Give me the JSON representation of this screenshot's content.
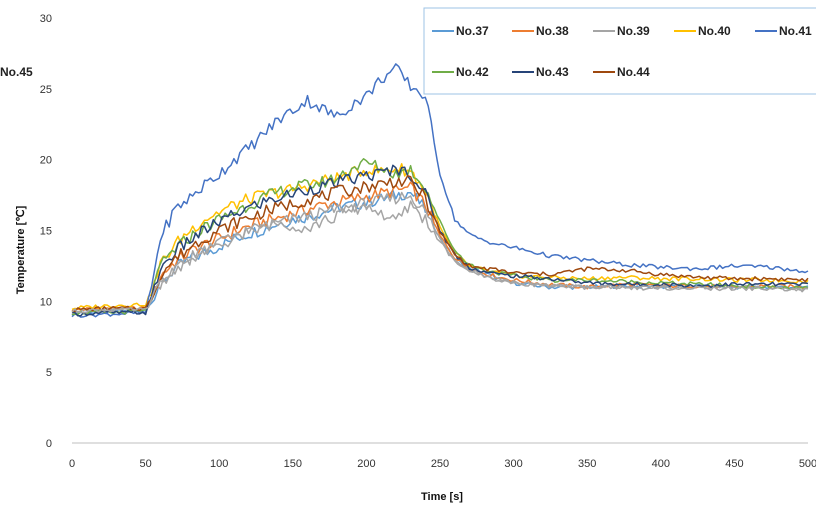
{
  "chart_data": {
    "type": "line",
    "title": "",
    "xlabel": "Time [s]",
    "ylabel": "Temperature [℃]",
    "xlim": [
      0,
      500
    ],
    "ylim": [
      0,
      30
    ],
    "x_ticks": [
      "0",
      "50",
      "100",
      "150",
      "200",
      "250",
      "300",
      "350",
      "400",
      "450",
      "500"
    ],
    "y_ticks": [
      "0",
      "5",
      "10",
      "15",
      "20",
      "25",
      "30"
    ],
    "grid": false,
    "legend_position": "top-right",
    "x": [
      0,
      25,
      50,
      55,
      60,
      70,
      80,
      90,
      100,
      110,
      120,
      130,
      140,
      150,
      160,
      170,
      180,
      190,
      200,
      210,
      220,
      230,
      240,
      250,
      260,
      270,
      280,
      290,
      300,
      325,
      350,
      375,
      400,
      425,
      450,
      475,
      500
    ],
    "series": [
      {
        "name": "No.37",
        "color": "#5b9bd5",
        "values": [
          9.2,
          9.3,
          9.3,
          10.2,
          11.2,
          12.3,
          13.0,
          13.4,
          13.9,
          14.4,
          14.8,
          15.1,
          15.5,
          15.8,
          16.0,
          16.3,
          16.6,
          16.8,
          17.0,
          17.2,
          17.5,
          17.7,
          16.5,
          14.5,
          13.0,
          12.3,
          12.0,
          11.6,
          11.3,
          11.0,
          11.0,
          11.1,
          11.0,
          11.1,
          11.0,
          11.0,
          11.0
        ]
      },
      {
        "name": "No.38",
        "color": "#ed7d31",
        "values": [
          9.4,
          9.5,
          9.5,
          10.4,
          11.8,
          12.8,
          13.5,
          14.0,
          14.4,
          14.9,
          15.3,
          15.6,
          15.9,
          16.2,
          16.5,
          16.8,
          17.0,
          17.2,
          17.4,
          17.6,
          17.8,
          18.0,
          16.8,
          14.6,
          13.1,
          12.3,
          12.0,
          11.7,
          11.5,
          11.2,
          11.0,
          11.2,
          11.1,
          11.1,
          11.0,
          11.1,
          11.0
        ]
      },
      {
        "name": "No.39",
        "color": "#a5a5a5",
        "values": [
          9.3,
          9.4,
          9.4,
          10.3,
          11.3,
          12.3,
          13.0,
          13.5,
          13.9,
          14.4,
          14.8,
          15.2,
          15.5,
          15.8,
          16.0,
          16.2,
          16.5,
          16.7,
          16.9,
          17.1,
          17.3,
          17.5,
          16.3,
          14.4,
          12.9,
          12.2,
          11.8,
          11.6,
          11.3,
          11.1,
          11.0,
          11.0,
          10.9,
          11.0,
          11.0,
          10.9,
          10.9
        ]
      },
      {
        "name": "No.40",
        "color": "#ffc000",
        "values": [
          9.5,
          9.7,
          9.8,
          10.8,
          12.6,
          14.0,
          15.0,
          15.8,
          16.3,
          16.8,
          17.2,
          17.5,
          17.7,
          17.9,
          18.2,
          18.5,
          18.7,
          19.0,
          19.3,
          19.2,
          19.4,
          19.2,
          17.8,
          15.2,
          13.4,
          12.5,
          12.2,
          12.0,
          11.8,
          11.7,
          11.6,
          11.7,
          11.6,
          11.6,
          11.5,
          11.5,
          11.4
        ]
      },
      {
        "name": "No.41",
        "color": "#4472c4",
        "values": [
          9.0,
          9.1,
          9.2,
          11.5,
          14.5,
          16.5,
          17.3,
          18.2,
          19.0,
          20.0,
          20.8,
          21.8,
          22.8,
          23.5,
          24.2,
          23.6,
          23.0,
          23.9,
          24.5,
          25.7,
          26.4,
          25.2,
          24.5,
          19.0,
          15.8,
          14.7,
          14.3,
          14.0,
          13.8,
          13.2,
          12.9,
          12.6,
          12.4,
          12.3,
          12.5,
          12.4,
          12.1
        ]
      },
      {
        "name": "No.42",
        "color": "#70ad47",
        "values": [
          9.2,
          9.2,
          9.3,
          10.5,
          12.5,
          13.7,
          14.5,
          15.2,
          15.8,
          16.3,
          16.8,
          17.3,
          17.7,
          18.0,
          18.2,
          18.4,
          18.7,
          19.4,
          19.8,
          19.4,
          19.0,
          19.3,
          18.1,
          15.6,
          13.6,
          12.6,
          12.2,
          12.0,
          11.8,
          11.5,
          11.5,
          11.4,
          11.3,
          11.2,
          11.1,
          11.0,
          10.9
        ]
      },
      {
        "name": "No.43",
        "color": "#264478",
        "values": [
          9.1,
          9.2,
          9.2,
          10.5,
          12.3,
          13.5,
          14.3,
          15.0,
          15.6,
          16.1,
          16.6,
          17.0,
          17.3,
          17.6,
          17.9,
          18.1,
          18.4,
          18.6,
          18.9,
          19.0,
          19.4,
          19.0,
          17.6,
          15.0,
          13.3,
          12.4,
          12.1,
          11.9,
          11.8,
          11.6,
          11.3,
          11.2,
          11.2,
          11.1,
          11.2,
          11.2,
          11.2
        ]
      },
      {
        "name": "No.44",
        "color": "#9e480e",
        "values": [
          9.4,
          9.5,
          9.5,
          10.4,
          11.9,
          13.0,
          13.8,
          14.5,
          15.0,
          15.5,
          15.9,
          16.3,
          16.6,
          16.9,
          17.2,
          17.4,
          17.7,
          17.9,
          18.1,
          18.3,
          18.5,
          18.4,
          17.3,
          14.9,
          13.3,
          12.5,
          12.3,
          12.2,
          12.0,
          11.9,
          12.3,
          12.2,
          11.9,
          11.7,
          11.6,
          11.6,
          11.5
        ]
      },
      {
        "name": "No.45",
        "color": "#a5a5a5",
        "values": [
          9.3,
          9.4,
          9.4,
          10.2,
          11.3,
          12.3,
          13.0,
          13.6,
          14.1,
          14.6,
          15.0,
          15.3,
          15.5,
          15.4,
          15.2,
          15.6,
          16.0,
          16.4,
          16.8,
          16.2,
          15.6,
          16.8,
          15.8,
          14.2,
          12.8,
          12.2,
          11.8,
          11.5,
          11.3,
          11.1,
          11.0,
          11.0,
          11.0,
          10.9,
          10.9,
          10.9,
          10.8
        ]
      }
    ]
  }
}
